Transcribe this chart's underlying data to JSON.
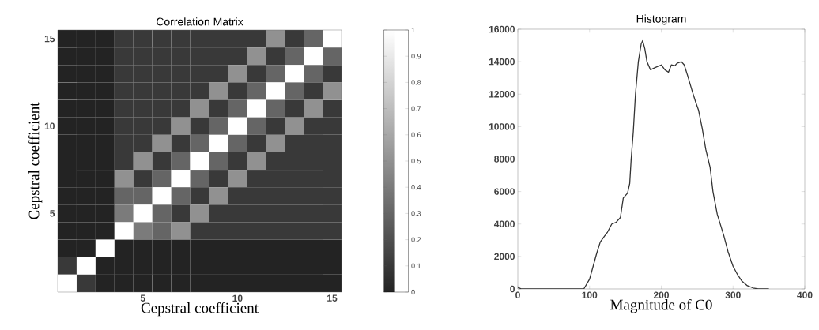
{
  "chart_data": [
    {
      "type": "heatmap",
      "title": "Correlation Matrix",
      "xlabel": "Cepstral coefficient",
      "ylabel": "Cepstral coefficient",
      "categories": [
        null,
        null,
        null,
        null,
        "5",
        null,
        null,
        null,
        null,
        "10",
        null,
        null,
        null,
        null,
        "15"
      ],
      "y_categories": [
        "15",
        null,
        null,
        null,
        null,
        "10",
        null,
        null,
        null,
        null,
        "5",
        null,
        null,
        null,
        null
      ],
      "cells": [
        [
          0,
          0,
          0,
          0.1,
          0.1,
          0.1,
          0.1,
          0.1,
          0.1,
          0.1,
          0.1,
          0.5,
          0.1,
          0.3,
          1
        ],
        [
          0,
          0,
          0,
          0.1,
          0.1,
          0.1,
          0.1,
          0.1,
          0.1,
          0.1,
          0.5,
          0.1,
          0.3,
          1,
          0.3
        ],
        [
          0,
          0,
          0,
          0.1,
          0.1,
          0.1,
          0.1,
          0.1,
          0.1,
          0.5,
          0.1,
          0.3,
          1,
          0.3,
          0.1
        ],
        [
          0,
          0,
          0,
          0.1,
          0.1,
          0.1,
          0.1,
          0.1,
          0.5,
          0.1,
          0.3,
          1,
          0.3,
          0.1,
          0.5
        ],
        [
          0,
          0,
          0,
          0.1,
          0.1,
          0.1,
          0.1,
          0.5,
          0.1,
          0.3,
          1,
          0.3,
          0.1,
          0.5,
          0.1
        ],
        [
          0,
          0,
          0,
          0.1,
          0.1,
          0.1,
          0.5,
          0.1,
          0.3,
          1,
          0.3,
          0.1,
          0.5,
          0.1,
          0.1
        ],
        [
          0,
          0,
          0,
          0.1,
          0.1,
          0.5,
          0.1,
          0.3,
          1,
          0.3,
          0.1,
          0.5,
          0.1,
          0.1,
          0.1
        ],
        [
          0,
          0,
          0,
          0.1,
          0.5,
          0.1,
          0.3,
          1,
          0.3,
          0.1,
          0.5,
          0.1,
          0.1,
          0.1,
          0.1
        ],
        [
          0,
          0,
          0,
          0.5,
          0.1,
          0.3,
          1,
          0.3,
          0.1,
          0.5,
          0.1,
          0.1,
          0.1,
          0.1,
          0.1
        ],
        [
          0,
          0,
          0,
          0.3,
          0.3,
          1,
          0.3,
          0.1,
          0.5,
          0.1,
          0.1,
          0.1,
          0.1,
          0.1,
          0.1
        ],
        [
          0,
          0,
          0,
          0.4,
          1,
          0.3,
          0.1,
          0.5,
          0.1,
          0.1,
          0.1,
          0.1,
          0.1,
          0.1,
          0.1
        ],
        [
          0,
          0,
          0,
          1,
          0.4,
          0.3,
          0.5,
          0.1,
          0.1,
          0.1,
          0.1,
          0.1,
          0.1,
          0.1,
          0.1
        ],
        [
          0,
          0,
          1,
          0,
          0,
          0,
          0,
          0,
          0,
          0,
          0,
          0,
          0,
          0,
          0
        ],
        [
          0.1,
          1,
          0,
          0,
          0,
          0,
          0,
          0,
          0,
          0,
          0,
          0,
          0,
          0,
          0
        ],
        [
          1,
          0.1,
          0,
          0,
          0,
          0,
          0,
          0,
          0,
          0,
          0,
          0,
          0,
          0,
          0
        ]
      ],
      "clim": [
        0,
        1
      ],
      "cticks": [
        0,
        0.1,
        0.2,
        0.3,
        0.4,
        0.5,
        0.6,
        0.7,
        0.8,
        0.9,
        1
      ]
    },
    {
      "type": "line",
      "title": "Histogram",
      "xlabel": "Magnitude of C0",
      "color": "#333333",
      "x": [
        0,
        5,
        92,
        100,
        105,
        110,
        115,
        120,
        125,
        131,
        137,
        143,
        147,
        153,
        156,
        158,
        161,
        164,
        168,
        172,
        174,
        177,
        180,
        185,
        192,
        200,
        205,
        210,
        214,
        219,
        222,
        228,
        232,
        237,
        243,
        248,
        252,
        257,
        262,
        268,
        272,
        278,
        287,
        293,
        300,
        306,
        312,
        320,
        328,
        335,
        350
      ],
      "values": [
        100,
        0,
        0,
        600,
        1400,
        2200,
        2900,
        3200,
        3500,
        4000,
        4100,
        4400,
        5600,
        5900,
        6500,
        8000,
        9700,
        12000,
        14000,
        15100,
        15300,
        14800,
        14000,
        13500,
        13650,
        13800,
        13500,
        13350,
        13800,
        13750,
        13900,
        14000,
        13800,
        13100,
        12200,
        11500,
        11000,
        9900,
        8600,
        7500,
        6000,
        4600,
        3300,
        2300,
        1400,
        900,
        500,
        200,
        60,
        0,
        0
      ],
      "xlim": [
        0,
        400
      ],
      "ylim": [
        0,
        16000
      ],
      "xticks": [
        0,
        100,
        200,
        300,
        400
      ],
      "yticks": [
        0,
        2000,
        4000,
        6000,
        8000,
        10000,
        12000,
        14000,
        16000
      ]
    }
  ]
}
